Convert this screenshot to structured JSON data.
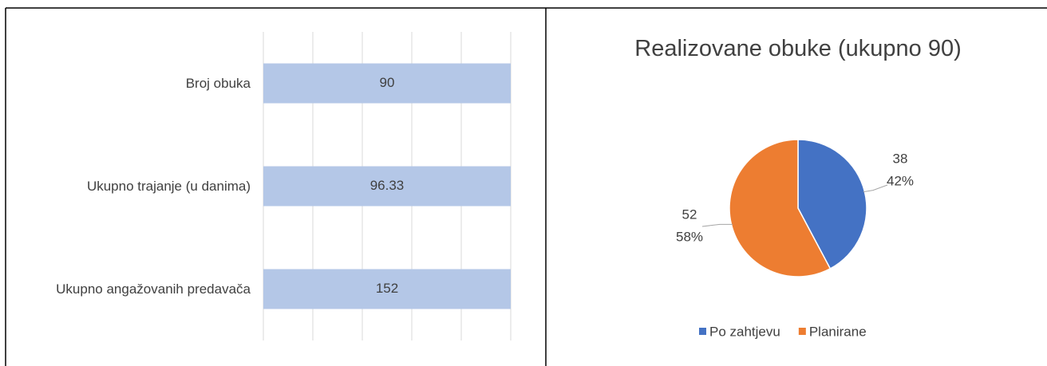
{
  "chart_data": [
    {
      "type": "bar",
      "orientation": "horizontal",
      "stacking": "percent",
      "categories": [
        "Broj obuka",
        "Ukupno trajanje (u danima)",
        "Ukupno angažovanih predavača"
      ],
      "values": [
        90,
        96.33,
        152
      ],
      "color": "#b4c7e7",
      "xlim": [
        0,
        100
      ],
      "xticks": [
        0,
        20,
        40,
        60,
        80,
        100
      ],
      "tick_labels": false,
      "grid": true
    },
    {
      "type": "pie",
      "title": "Realizovane obuke (ukupno 90)",
      "series": [
        {
          "name": "Po zahtjevu",
          "color": "#4472c4"
        },
        {
          "name": "Planirane",
          "color": "#ed7d31"
        }
      ],
      "values": [
        38,
        52
      ],
      "value_labels": [
        "42%",
        "58%"
      ],
      "legend": "bottom"
    }
  ]
}
